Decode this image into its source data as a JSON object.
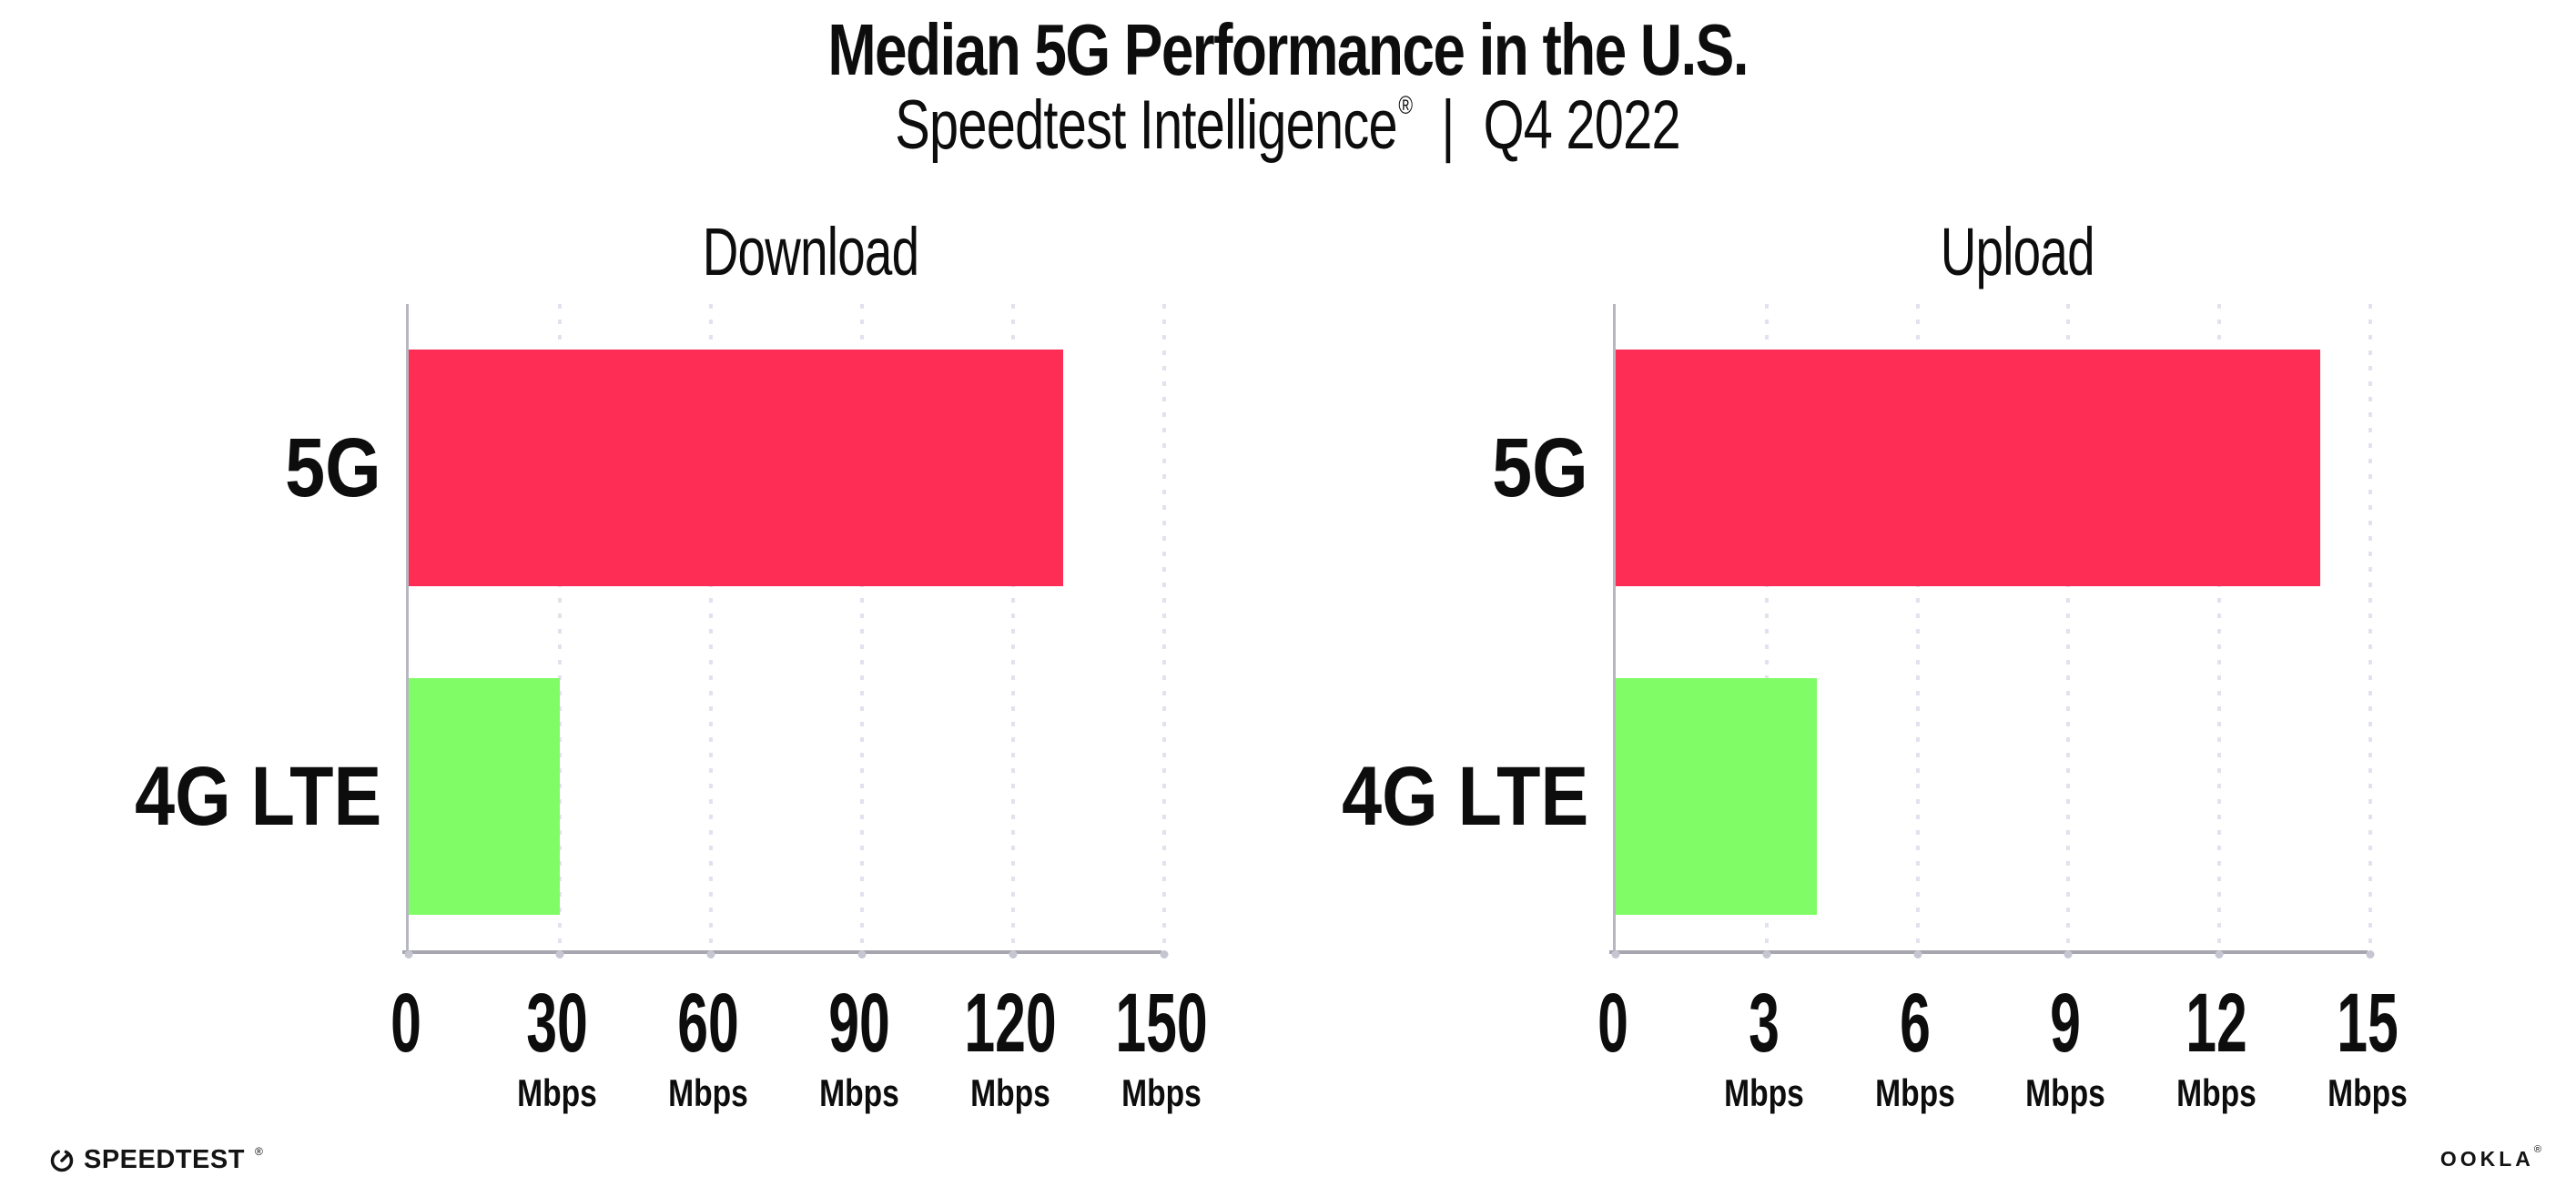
{
  "header": {
    "title": "Median 5G Performance in the U.S.",
    "subtitle_brand": "Speedtest Intelligence",
    "subtitle_reg": "®",
    "subtitle_sep": "|",
    "subtitle_period": "Q4 2022"
  },
  "chart_data": [
    {
      "type": "bar",
      "orientation": "horizontal",
      "title": "Download",
      "unit": "Mbps",
      "categories": [
        "5G",
        "4G LTE"
      ],
      "values": [
        130,
        30
      ],
      "colors": [
        "#fd2d55",
        "#80fd66"
      ],
      "xlim": [
        0,
        150
      ],
      "xticks": [
        0,
        30,
        60,
        90,
        120,
        150
      ],
      "grid": "vertical-dotted",
      "legend": "none",
      "values_note": "approximate values read from bar lengths; bars are unlabeled in the image"
    },
    {
      "type": "bar",
      "orientation": "horizontal",
      "title": "Upload",
      "unit": "Mbps",
      "categories": [
        "5G",
        "4G LTE"
      ],
      "values": [
        14,
        4
      ],
      "colors": [
        "#fd2d55",
        "#80fd66"
      ],
      "xlim": [
        0,
        15
      ],
      "xticks": [
        0,
        3,
        6,
        9,
        12,
        15
      ],
      "grid": "vertical-dotted",
      "legend": "none",
      "values_note": "approximate values read from bar lengths; bars are unlabeled in the image"
    }
  ],
  "colors": {
    "bar_5g": "#fd2d55",
    "bar_4g_lte": "#80fd66",
    "gridline": "#e2e2ee",
    "axis": "#a6a6b1",
    "text": "#0d0d0d",
    "background": "#ffffff"
  },
  "footer": {
    "speedtest_label": "SPEEDTEST",
    "speedtest_mark": "®",
    "ookla_label": "OOKLA",
    "ookla_mark": "®"
  }
}
